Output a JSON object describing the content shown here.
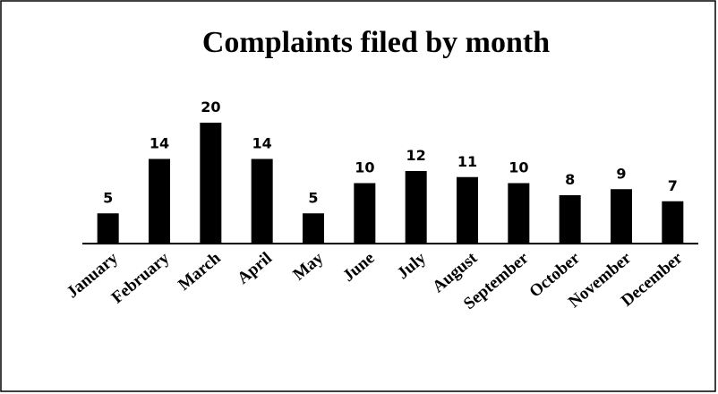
{
  "chart_data": {
    "type": "bar",
    "title": "Complaints filed by month",
    "categories": [
      "January",
      "February",
      "March",
      "April",
      "May",
      "June",
      "July",
      "August",
      "September",
      "October",
      "November",
      "December"
    ],
    "values": [
      5,
      14,
      20,
      14,
      5,
      10,
      12,
      11,
      10,
      8,
      9,
      7
    ],
    "color": "#000000"
  }
}
